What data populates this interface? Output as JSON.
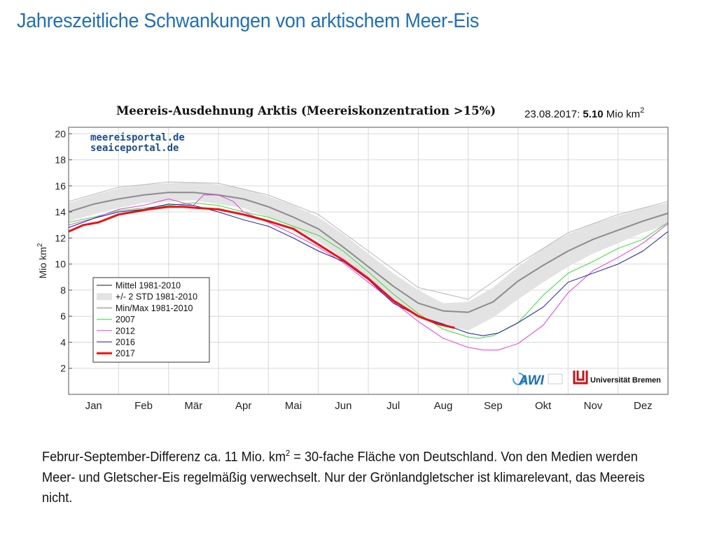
{
  "slide": {
    "title": "Jahreszeitliche Schwankungen von arktischem Meer-Eis",
    "caption_part1": "Februr-September-Differenz ca. 11 Mio. km",
    "caption_sup": "2",
    "caption_part2": " = 30-fache Fläche von Deutschland. Von den Medien werden Meer- und Gletscher-Eis regelmäßig verwechselt. Nur der Grönlandgletscher ist klimarelevant, das Meereis nicht."
  },
  "chart_data": {
    "type": "line",
    "title": "Meereis-Ausdehnung Arktis (Meereiskonzentration >15%)",
    "date_note": {
      "date": "23.08.2017:",
      "value": "5.10",
      "unit": "Mio km",
      "unit_sup": "2"
    },
    "watermark": [
      "meereisportal.de",
      "seaiceportal.de"
    ],
    "logos": [
      "AWI",
      "Universität Bremen"
    ],
    "ylabel": "Mio km",
    "ylabel_sup": "2",
    "xlabel": "",
    "ylim": [
      0,
      20.5
    ],
    "xlim": [
      0,
      12
    ],
    "yticks": [
      2,
      4,
      6,
      8,
      10,
      12,
      14,
      16,
      18,
      20
    ],
    "months": [
      "Jan",
      "Feb",
      "Mär",
      "Apr",
      "Mai",
      "Jun",
      "Jul",
      "Aug",
      "Sep",
      "Okt",
      "Nov",
      "Dez"
    ],
    "grid": true,
    "legend_position": "bottom-left",
    "band": {
      "name": "+/- 2 STD 1981-2010",
      "color": "#e3e3e3",
      "x": [
        0,
        0.5,
        1,
        1.5,
        2,
        2.5,
        3,
        3.5,
        4,
        4.5,
        5,
        5.5,
        6,
        6.5,
        7,
        7.5,
        8,
        8.5,
        9,
        9.5,
        10,
        10.5,
        11,
        11.5,
        12
      ],
      "upper": [
        14.7,
        15.3,
        15.8,
        16.1,
        16.2,
        16.3,
        16.1,
        15.8,
        15.2,
        14.5,
        13.6,
        12.3,
        10.8,
        9.3,
        8.0,
        7.0,
        7.1,
        8.2,
        9.8,
        11.2,
        12.3,
        13.1,
        13.7,
        14.3,
        14.7
      ],
      "lower": [
        13.3,
        13.8,
        14.3,
        14.7,
        14.8,
        14.9,
        14.6,
        14.3,
        13.6,
        12.8,
        11.8,
        10.4,
        8.8,
        7.3,
        6.0,
        5.3,
        4.9,
        5.9,
        7.3,
        8.6,
        9.8,
        10.8,
        11.6,
        12.4,
        13.0
      ]
    },
    "series": [
      {
        "name": "Mittel 1981-2010",
        "color": "#8c8c8c",
        "width": 2,
        "x": [
          0,
          0.5,
          1,
          1.5,
          2,
          2.5,
          3,
          3.5,
          4,
          4.5,
          5,
          5.5,
          6,
          6.5,
          7,
          7.5,
          8,
          8.5,
          9,
          9.5,
          10,
          10.5,
          11,
          11.5,
          12
        ],
        "values": [
          14.0,
          14.6,
          15.0,
          15.3,
          15.5,
          15.5,
          15.3,
          15.0,
          14.4,
          13.6,
          12.7,
          11.3,
          9.8,
          8.3,
          7.0,
          6.4,
          6.3,
          7.1,
          8.7,
          9.9,
          11.0,
          11.9,
          12.6,
          13.3,
          13.9
        ]
      },
      {
        "name": "Min/Max 1981-2010",
        "color": "#b8b8b8",
        "width": 1,
        "x": [
          0,
          1,
          2,
          3,
          4,
          5,
          6,
          7,
          8,
          9,
          10,
          11,
          12
        ],
        "values": [
          14.8,
          15.9,
          16.3,
          16.2,
          15.3,
          13.8,
          11.0,
          8.2,
          7.3,
          10.0,
          12.4,
          13.8,
          14.8
        ]
      },
      {
        "name": "2007",
        "color": "#33dd33",
        "width": 1,
        "x": [
          0,
          0.5,
          1,
          1.5,
          2,
          2.5,
          3,
          3.5,
          4,
          4.5,
          5,
          5.5,
          6,
          6.5,
          7,
          7.5,
          8,
          8.2,
          8.5,
          9,
          9.5,
          10,
          10.5,
          11,
          11.5,
          12
        ],
        "values": [
          13.2,
          13.6,
          14.1,
          14.3,
          14.5,
          14.7,
          14.5,
          14.0,
          13.6,
          12.9,
          12.2,
          11.0,
          9.4,
          7.7,
          6.2,
          5.0,
          4.4,
          4.3,
          4.5,
          5.5,
          7.6,
          9.3,
          10.2,
          11.2,
          11.9,
          13.2
        ]
      },
      {
        "name": "2012",
        "color": "#e040e0",
        "width": 1,
        "x": [
          0,
          0.5,
          1,
          1.5,
          2,
          2.5,
          2.7,
          3,
          3.3,
          3.5,
          4,
          4.5,
          5,
          5.5,
          6,
          6.5,
          7,
          7.5,
          8,
          8.3,
          8.6,
          9,
          9.5,
          10,
          10.5,
          11,
          11.5,
          12
        ],
        "values": [
          13.0,
          13.5,
          14.2,
          14.5,
          15.0,
          14.5,
          15.3,
          15.3,
          14.8,
          14.0,
          13.2,
          12.3,
          11.3,
          10.1,
          8.6,
          7.1,
          5.6,
          4.3,
          3.6,
          3.4,
          3.4,
          3.9,
          5.3,
          7.8,
          9.5,
          10.5,
          11.6,
          13.1
        ]
      },
      {
        "name": "2016",
        "color": "#1a1aaa",
        "width": 1,
        "x": [
          0,
          0.5,
          1,
          1.5,
          2,
          2.5,
          3,
          3.5,
          4,
          4.5,
          5,
          5.5,
          6,
          6.5,
          7,
          7.5,
          8,
          8.3,
          8.6,
          9,
          9.5,
          10,
          10.5,
          11,
          11.5,
          12
        ],
        "values": [
          12.8,
          13.5,
          14.0,
          14.2,
          14.6,
          14.5,
          14.0,
          13.4,
          12.9,
          12.0,
          11.0,
          10.2,
          8.8,
          7.0,
          6.0,
          5.4,
          4.7,
          4.5,
          4.7,
          5.5,
          6.7,
          8.6,
          9.3,
          10.0,
          11.0,
          12.5
        ]
      },
      {
        "name": "2017",
        "color": "#ee1111",
        "width": 3,
        "x": [
          0,
          0.3,
          0.6,
          1,
          1.3,
          1.6,
          2,
          2.3,
          2.6,
          3,
          3.5,
          4,
          4.5,
          5,
          5.5,
          6,
          6.5,
          7,
          7.4,
          7.73
        ],
        "values": [
          12.5,
          13.0,
          13.2,
          13.8,
          14.0,
          14.2,
          14.4,
          14.4,
          14.3,
          14.2,
          13.8,
          13.3,
          12.7,
          11.5,
          10.3,
          8.9,
          7.2,
          6.0,
          5.4,
          5.1
        ]
      }
    ]
  }
}
